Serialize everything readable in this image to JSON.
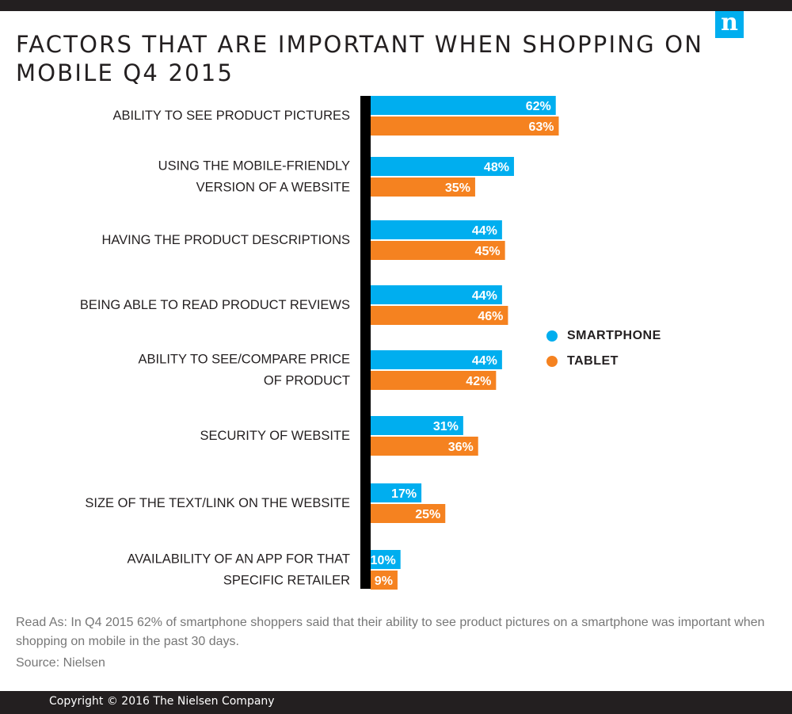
{
  "header": {
    "logo_text": "n"
  },
  "chart_data": {
    "type": "bar",
    "orientation": "horizontal",
    "title": "FACTORS THAT ARE IMPORTANT WHEN SHOPPING ON MOBILE Q4 2015",
    "categories": [
      [
        "ABILITY TO SEE PRODUCT PICTURES"
      ],
      [
        "USING THE MOBILE-FRIENDLY",
        "VERSION OF A WEBSITE"
      ],
      [
        "HAVING THE PRODUCT DESCRIPTIONS"
      ],
      [
        "BEING ABLE TO READ PRODUCT REVIEWS"
      ],
      [
        "ABILITY TO SEE/COMPARE PRICE",
        "OF PRODUCT"
      ],
      [
        "SECURITY OF WEBSITE"
      ],
      [
        "SIZE OF THE TEXT/LINK ON THE WEBSITE"
      ],
      [
        "AVAILABILITY OF AN APP FOR THAT",
        "SPECIFIC RETAILER"
      ]
    ],
    "series": [
      {
        "name": "SMARTPHONE",
        "color": "#00aeef",
        "values": [
          62,
          48,
          44,
          44,
          44,
          31,
          17,
          10
        ]
      },
      {
        "name": "TABLET",
        "color": "#f58220",
        "values": [
          63,
          35,
          45,
          46,
          42,
          36,
          25,
          9
        ]
      }
    ],
    "value_suffix": "%",
    "xlim": [
      0,
      100
    ]
  },
  "legend": {
    "items": [
      {
        "label": "SMARTPHONE",
        "color": "#00aeef"
      },
      {
        "label": "TABLET",
        "color": "#f58220"
      }
    ]
  },
  "footer": {
    "read_as": "Read As: In Q4 2015 62% of smartphone shoppers said that their ability to see product pictures on a smartphone was important when shopping on mobile in the past 30 days.",
    "source": "Source: Nielsen",
    "copyright": "Copyright © 2016 The Nielsen Company"
  }
}
